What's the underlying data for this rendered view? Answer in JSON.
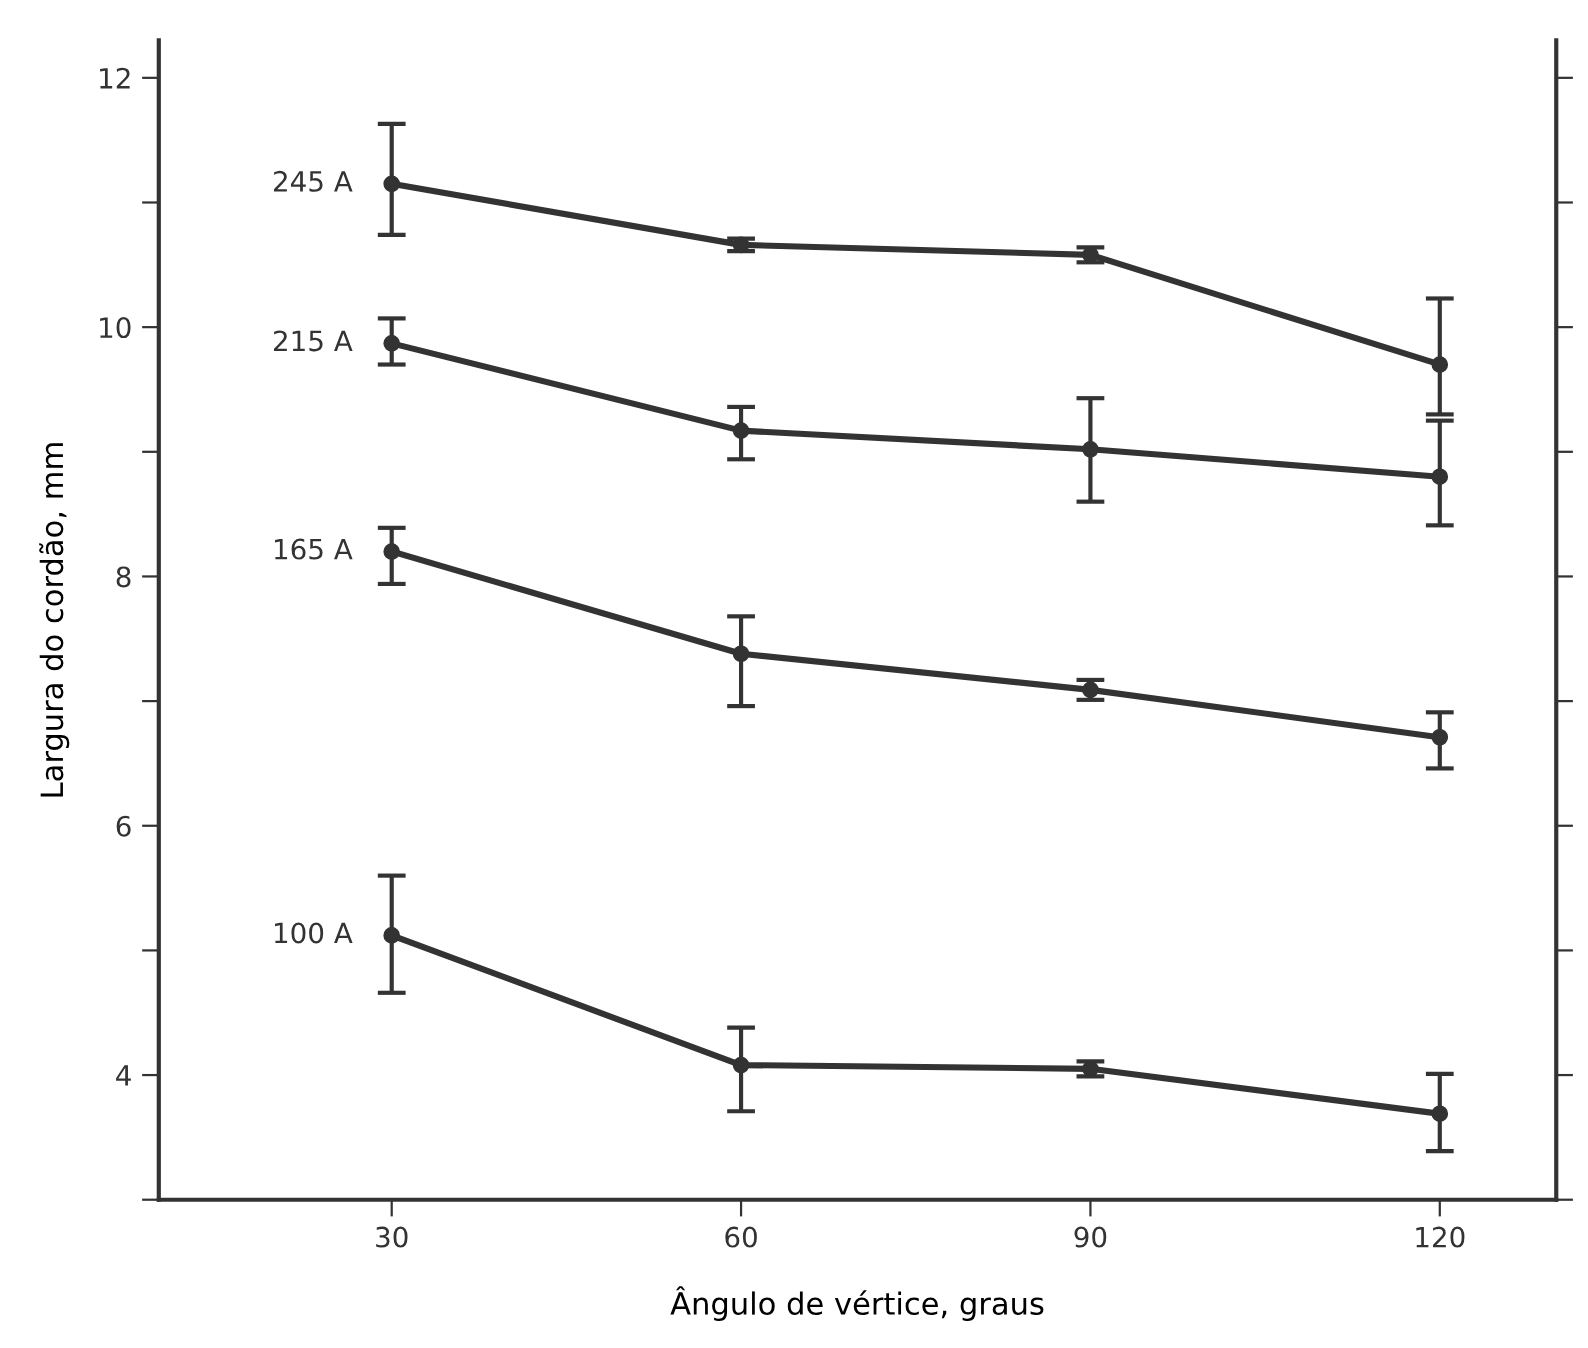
{
  "chart_data": {
    "type": "line",
    "xlabel": "Ângulo de vértice, graus",
    "ylabel": "Largura do cordão, mm",
    "x": [
      30,
      60,
      90,
      120
    ],
    "xlim": [
      10,
      130
    ],
    "xticks": [
      30,
      60,
      90,
      120
    ],
    "ylim": [
      3,
      12.3
    ],
    "yticks": [
      {
        "value": 3,
        "label": null
      },
      4,
      {
        "value": 5,
        "label": null
      },
      6,
      {
        "value": 7,
        "label": null
      },
      8,
      {
        "value": 9,
        "label": null
      },
      10,
      {
        "value": 11,
        "label": null
      },
      12
    ],
    "marker": "circle",
    "line_style": "solid",
    "grid": false,
    "legend": false,
    "series": [
      {
        "name": "245 A",
        "color": "#333333",
        "values": [
          11.15,
          10.66,
          10.58,
          9.7
        ],
        "errors": [
          [
            10.74,
            11.63
          ],
          [
            10.61,
            10.71
          ],
          [
            10.52,
            10.64
          ],
          [
            9.3,
            10.23
          ]
        ]
      },
      {
        "name": "215 A",
        "color": "#333333",
        "values": [
          9.87,
          9.17,
          9.02,
          8.8
        ],
        "errors": [
          [
            9.7,
            10.07
          ],
          [
            8.94,
            9.36
          ],
          [
            8.6,
            9.43
          ],
          [
            8.41,
            9.25
          ]
        ]
      },
      {
        "name": "165 A",
        "color": "#333333",
        "values": [
          8.2,
          7.38,
          7.09,
          6.71
        ],
        "errors": [
          [
            7.94,
            8.39
          ],
          [
            6.96,
            7.68
          ],
          [
            7.01,
            7.17
          ],
          [
            6.46,
            6.91
          ]
        ]
      },
      {
        "name": "100 A",
        "color": "#333333",
        "values": [
          5.12,
          4.08,
          4.05,
          3.69
        ],
        "errors": [
          [
            4.66,
            5.6
          ],
          [
            3.71,
            4.38
          ],
          [
            3.99,
            4.11
          ],
          [
            3.39,
            4.01
          ]
        ]
      }
    ]
  }
}
